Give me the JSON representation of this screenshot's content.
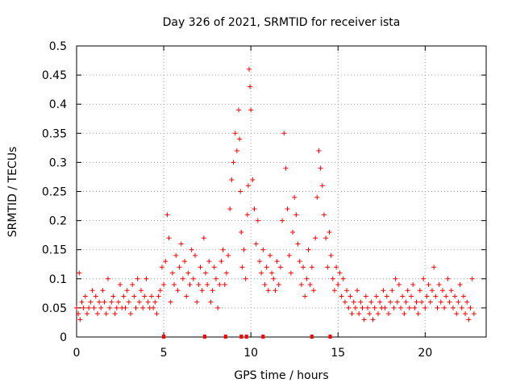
{
  "chart_data": {
    "type": "scatter",
    "title": "Day 326 of 2021, SRMTID for receiver ista",
    "xlabel": "GPS time / hours",
    "ylabel": "SRMTID / TECUs",
    "xlim": [
      0,
      23.5
    ],
    "ylim": [
      0,
      0.5
    ],
    "xticks": [
      0,
      5,
      10,
      15,
      20
    ],
    "xtick_labels": [
      "0",
      "5",
      "10",
      "15",
      "20"
    ],
    "yticks": [
      0,
      0.05,
      0.1,
      0.15,
      0.2,
      0.25,
      0.3,
      0.35,
      0.4,
      0.45,
      0.5
    ],
    "ytick_labels": [
      "0",
      "0.05",
      "0.1",
      "0.15",
      "0.2",
      "0.25",
      "0.3",
      "0.35",
      "0.4",
      "0.45",
      "0.5"
    ],
    "grid": true,
    "marker": "+",
    "color": "#ff0000",
    "series": [
      {
        "name": "SRMTID",
        "points": [
          [
            0.0,
            0.05
          ],
          [
            0.1,
            0.04
          ],
          [
            0.15,
            0.11
          ],
          [
            0.2,
            0.03
          ],
          [
            0.3,
            0.06
          ],
          [
            0.4,
            0.05
          ],
          [
            0.5,
            0.07
          ],
          [
            0.6,
            0.04
          ],
          [
            0.7,
            0.05
          ],
          [
            0.8,
            0.06
          ],
          [
            0.9,
            0.08
          ],
          [
            1.0,
            0.05
          ],
          [
            1.1,
            0.07
          ],
          [
            1.2,
            0.04
          ],
          [
            1.3,
            0.06
          ],
          [
            1.4,
            0.05
          ],
          [
            1.5,
            0.08
          ],
          [
            1.6,
            0.06
          ],
          [
            1.7,
            0.04
          ],
          [
            1.8,
            0.1
          ],
          [
            1.9,
            0.05
          ],
          [
            2.0,
            0.06
          ],
          [
            2.1,
            0.07
          ],
          [
            2.2,
            0.04
          ],
          [
            2.3,
            0.05
          ],
          [
            2.4,
            0.06
          ],
          [
            2.5,
            0.09
          ],
          [
            2.6,
            0.05
          ],
          [
            2.7,
            0.07
          ],
          [
            2.8,
            0.05
          ],
          [
            2.9,
            0.08
          ],
          [
            3.0,
            0.06
          ],
          [
            3.1,
            0.04
          ],
          [
            3.2,
            0.09
          ],
          [
            3.3,
            0.07
          ],
          [
            3.4,
            0.05
          ],
          [
            3.5,
            0.1
          ],
          [
            3.6,
            0.06
          ],
          [
            3.7,
            0.08
          ],
          [
            3.8,
            0.05
          ],
          [
            3.9,
            0.07
          ],
          [
            4.0,
            0.1
          ],
          [
            4.1,
            0.06
          ],
          [
            4.2,
            0.05
          ],
          [
            4.3,
            0.07
          ],
          [
            4.4,
            0.05
          ],
          [
            4.5,
            0.06
          ],
          [
            4.6,
            0.04
          ],
          [
            4.7,
            0.07
          ],
          [
            4.8,
            0.08
          ],
          [
            4.9,
            0.12
          ],
          [
            5.0,
            0.09
          ],
          [
            5.1,
            0.13
          ],
          [
            5.2,
            0.21
          ],
          [
            5.3,
            0.17
          ],
          [
            5.4,
            0.06
          ],
          [
            5.5,
            0.11
          ],
          [
            5.6,
            0.09
          ],
          [
            5.7,
            0.14
          ],
          [
            5.8,
            0.08
          ],
          [
            5.9,
            0.12
          ],
          [
            6.0,
            0.16
          ],
          [
            6.1,
            0.1
          ],
          [
            6.2,
            0.13
          ],
          [
            6.3,
            0.07
          ],
          [
            6.4,
            0.11
          ],
          [
            6.5,
            0.09
          ],
          [
            6.6,
            0.15
          ],
          [
            6.7,
            0.1
          ],
          [
            6.8,
            0.14
          ],
          [
            6.9,
            0.06
          ],
          [
            7.0,
            0.09
          ],
          [
            7.1,
            0.12
          ],
          [
            7.2,
            0.08
          ],
          [
            7.3,
            0.17
          ],
          [
            7.4,
            0.11
          ],
          [
            7.5,
            0.09
          ],
          [
            7.6,
            0.13
          ],
          [
            7.7,
            0.06
          ],
          [
            7.8,
            0.08
          ],
          [
            7.9,
            0.12
          ],
          [
            8.0,
            0.1
          ],
          [
            8.1,
            0.05
          ],
          [
            8.2,
            0.09
          ],
          [
            8.3,
            0.13
          ],
          [
            8.4,
            0.15
          ],
          [
            8.5,
            0.09
          ],
          [
            8.6,
            0.11
          ],
          [
            8.7,
            0.14
          ],
          [
            8.8,
            0.22
          ],
          [
            8.9,
            0.27
          ],
          [
            9.0,
            0.3
          ],
          [
            9.1,
            0.35
          ],
          [
            9.2,
            0.32
          ],
          [
            9.3,
            0.39
          ],
          [
            9.35,
            0.34
          ],
          [
            9.4,
            0.25
          ],
          [
            9.45,
            0.18
          ],
          [
            9.5,
            0.12
          ],
          [
            9.6,
            0.15
          ],
          [
            9.7,
            0.1
          ],
          [
            9.8,
            0.21
          ],
          [
            9.85,
            0.26
          ],
          [
            9.9,
            0.46
          ],
          [
            9.95,
            0.43
          ],
          [
            10.0,
            0.39
          ],
          [
            10.1,
            0.27
          ],
          [
            10.2,
            0.22
          ],
          [
            10.3,
            0.16
          ],
          [
            10.4,
            0.2
          ],
          [
            10.5,
            0.13
          ],
          [
            10.6,
            0.11
          ],
          [
            10.7,
            0.15
          ],
          [
            10.8,
            0.09
          ],
          [
            10.9,
            0.12
          ],
          [
            11.0,
            0.08
          ],
          [
            11.1,
            0.14
          ],
          [
            11.2,
            0.11
          ],
          [
            11.3,
            0.1
          ],
          [
            11.4,
            0.08
          ],
          [
            11.5,
            0.13
          ],
          [
            11.6,
            0.09
          ],
          [
            11.7,
            0.12
          ],
          [
            11.8,
            0.2
          ],
          [
            11.9,
            0.35
          ],
          [
            12.0,
            0.29
          ],
          [
            12.1,
            0.22
          ],
          [
            12.2,
            0.14
          ],
          [
            12.3,
            0.11
          ],
          [
            12.4,
            0.18
          ],
          [
            12.5,
            0.24
          ],
          [
            12.6,
            0.21
          ],
          [
            12.7,
            0.16
          ],
          [
            12.8,
            0.13
          ],
          [
            12.9,
            0.09
          ],
          [
            13.0,
            0.12
          ],
          [
            13.1,
            0.07
          ],
          [
            13.2,
            0.1
          ],
          [
            13.3,
            0.15
          ],
          [
            13.4,
            0.09
          ],
          [
            13.5,
            0.12
          ],
          [
            13.6,
            0.08
          ],
          [
            13.7,
            0.17
          ],
          [
            13.8,
            0.24
          ],
          [
            13.9,
            0.32
          ],
          [
            14.0,
            0.29
          ],
          [
            14.1,
            0.26
          ],
          [
            14.2,
            0.21
          ],
          [
            14.3,
            0.17
          ],
          [
            14.4,
            0.12
          ],
          [
            14.5,
            0.18
          ],
          [
            14.6,
            0.14
          ],
          [
            14.7,
            0.1
          ],
          [
            14.8,
            0.08
          ],
          [
            14.9,
            0.12
          ],
          [
            15.0,
            0.09
          ],
          [
            15.1,
            0.11
          ],
          [
            15.2,
            0.07
          ],
          [
            15.3,
            0.1
          ],
          [
            15.4,
            0.06
          ],
          [
            15.5,
            0.08
          ],
          [
            15.6,
            0.05
          ],
          [
            15.7,
            0.07
          ],
          [
            15.8,
            0.04
          ],
          [
            15.9,
            0.06
          ],
          [
            16.0,
            0.05
          ],
          [
            16.1,
            0.08
          ],
          [
            16.2,
            0.04
          ],
          [
            16.3,
            0.06
          ],
          [
            16.4,
            0.05
          ],
          [
            16.5,
            0.03
          ],
          [
            16.6,
            0.07
          ],
          [
            16.7,
            0.05
          ],
          [
            16.8,
            0.04
          ],
          [
            16.9,
            0.06
          ],
          [
            17.0,
            0.03
          ],
          [
            17.1,
            0.05
          ],
          [
            17.2,
            0.07
          ],
          [
            17.3,
            0.04
          ],
          [
            17.4,
            0.06
          ],
          [
            17.5,
            0.05
          ],
          [
            17.6,
            0.08
          ],
          [
            17.7,
            0.05
          ],
          [
            17.8,
            0.07
          ],
          [
            17.9,
            0.04
          ],
          [
            18.0,
            0.06
          ],
          [
            18.1,
            0.08
          ],
          [
            18.2,
            0.05
          ],
          [
            18.3,
            0.1
          ],
          [
            18.4,
            0.06
          ],
          [
            18.5,
            0.09
          ],
          [
            18.6,
            0.05
          ],
          [
            18.7,
            0.07
          ],
          [
            18.8,
            0.04
          ],
          [
            18.9,
            0.06
          ],
          [
            19.0,
            0.08
          ],
          [
            19.1,
            0.05
          ],
          [
            19.2,
            0.07
          ],
          [
            19.3,
            0.09
          ],
          [
            19.4,
            0.05
          ],
          [
            19.5,
            0.06
          ],
          [
            19.6,
            0.04
          ],
          [
            19.7,
            0.08
          ],
          [
            19.8,
            0.06
          ],
          [
            19.9,
            0.1
          ],
          [
            20.0,
            0.05
          ],
          [
            20.1,
            0.07
          ],
          [
            20.2,
            0.09
          ],
          [
            20.3,
            0.06
          ],
          [
            20.4,
            0.08
          ],
          [
            20.5,
            0.12
          ],
          [
            20.6,
            0.07
          ],
          [
            20.7,
            0.05
          ],
          [
            20.8,
            0.09
          ],
          [
            20.9,
            0.06
          ],
          [
            21.0,
            0.08
          ],
          [
            21.1,
            0.05
          ],
          [
            21.2,
            0.07
          ],
          [
            21.3,
            0.1
          ],
          [
            21.4,
            0.06
          ],
          [
            21.5,
            0.08
          ],
          [
            21.6,
            0.05
          ],
          [
            21.7,
            0.07
          ],
          [
            21.8,
            0.04
          ],
          [
            21.9,
            0.06
          ],
          [
            22.0,
            0.09
          ],
          [
            22.1,
            0.05
          ],
          [
            22.2,
            0.07
          ],
          [
            22.3,
            0.04
          ],
          [
            22.4,
            0.06
          ],
          [
            22.5,
            0.03
          ],
          [
            22.6,
            0.05
          ],
          [
            22.7,
            0.1
          ],
          [
            22.8,
            0.04
          ]
        ]
      }
    ],
    "baseline_markers": [
      5.0,
      7.35,
      8.55,
      9.45,
      9.75,
      10.7,
      13.5,
      14.55
    ]
  }
}
